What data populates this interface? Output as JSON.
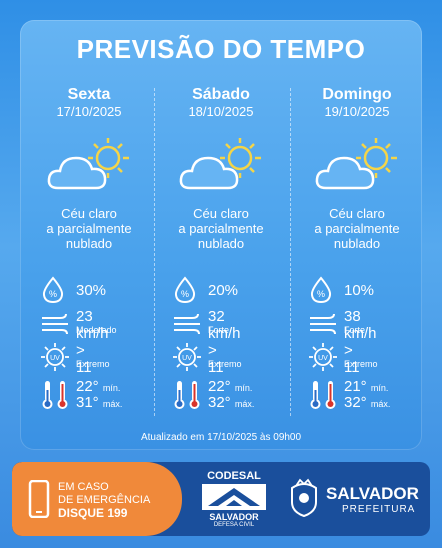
{
  "title": "PREVISÃO DO TEMPO",
  "days": [
    {
      "day": "Sexta",
      "date": "17/10/2025",
      "desc1": "Céu claro",
      "desc2": "a parcialmente",
      "desc3": "nublado",
      "rain": "30%",
      "wind": "23 km/h",
      "wind_level": "Moderado",
      "uv": "> 11",
      "uv_level": "Extremo",
      "tmin": "22°",
      "tmax": "31°",
      "min_label": "mín.",
      "max_label": "máx."
    },
    {
      "day": "Sábado",
      "date": "18/10/2025",
      "desc1": "Céu claro",
      "desc2": "a parcialmente",
      "desc3": "nublado",
      "rain": "20%",
      "wind": "32 km/h",
      "wind_level": "Forte",
      "uv": "> 11",
      "uv_level": "Extremo",
      "tmin": "22°",
      "tmax": "32°",
      "min_label": "mín.",
      "max_label": "máx."
    },
    {
      "day": "Domingo",
      "date": "19/10/2025",
      "desc1": "Céu claro",
      "desc2": "a parcialmente",
      "desc3": "nublado",
      "rain": "10%",
      "wind": "38 km/h",
      "wind_level": "Forte",
      "uv": "> 11",
      "uv_level": "Extremo",
      "tmin": "21°",
      "tmax": "32°",
      "min_label": "mín.",
      "max_label": "máx."
    }
  ],
  "updated": "Atualizado em 17/10/2025 às 09h00",
  "footer": {
    "emergency_line1": "EM CASO",
    "emergency_line2": "DE EMERGÊNCIA",
    "emergency_line3": "DISQUE 199",
    "codesal": "CODESAL",
    "codesal_city": "SALVADOR",
    "codesal_sub": "DEFESA CIVIL",
    "salvador": "SALVADOR",
    "prefeitura": "PREFEITURA"
  },
  "colors": {
    "accent": "#4aa2ec",
    "footer": "#1a4f9c",
    "emergency": "#f0893a",
    "sun": "#f5d547"
  },
  "icons": [
    "cloud-sun-icon",
    "rain-drop-icon",
    "wind-icon",
    "uv-icon",
    "thermometer-cold-icon",
    "thermometer-hot-icon",
    "phone-icon",
    "codesal-logo",
    "salvador-crest-icon"
  ]
}
